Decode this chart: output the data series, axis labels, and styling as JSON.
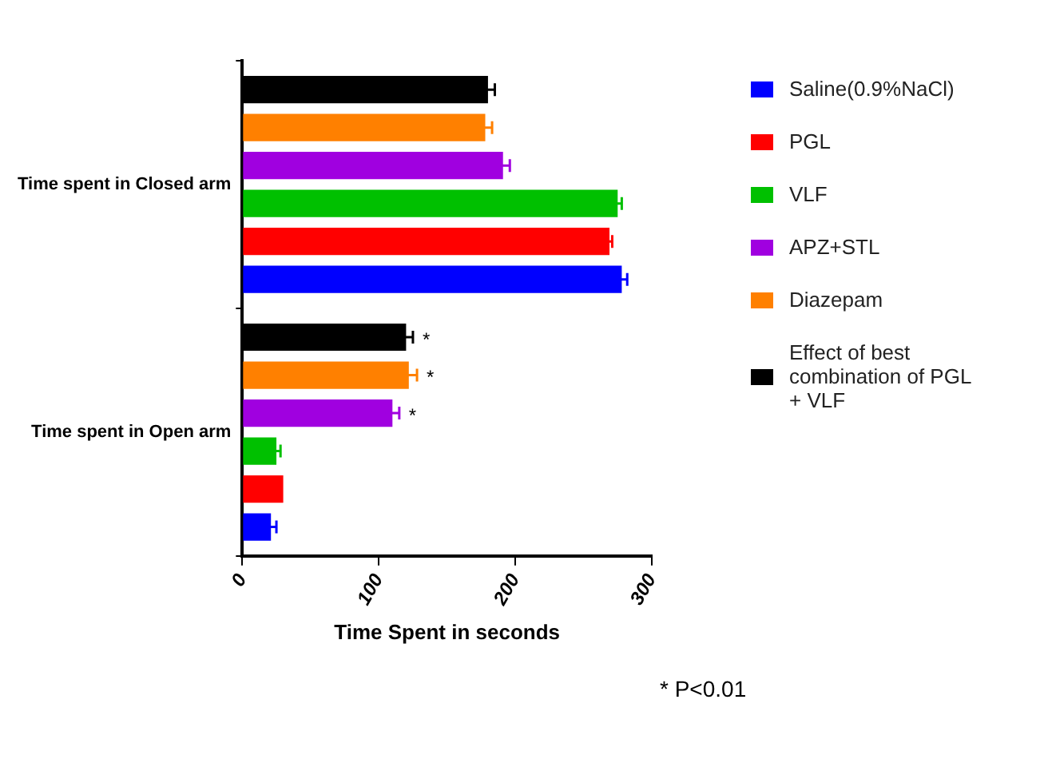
{
  "chart_data": {
    "type": "bar",
    "orientation": "horizontal",
    "xlabel": "Time Spent in seconds",
    "categories": [
      "Time spent in Closed arm",
      "Time spent in Open arm"
    ],
    "series": [
      {
        "name": "Saline(0.9%NaCl)",
        "color": "#0000ff",
        "values": [
          278,
          21
        ],
        "errors": [
          4,
          4
        ]
      },
      {
        "name": "PGL",
        "color": "#ff0000",
        "values": [
          269,
          30
        ],
        "errors": [
          2,
          null
        ]
      },
      {
        "name": "VLF",
        "color": "#00c000",
        "values": [
          275,
          25
        ],
        "errors": [
          3,
          3
        ]
      },
      {
        "name": "APZ+STL",
        "color": "#a000e0",
        "values": [
          191,
          110
        ],
        "errors": [
          5,
          5
        ],
        "value_labels": [
          null,
          "*"
        ]
      },
      {
        "name": "Diazepam",
        "color": "#ff8000",
        "values": [
          178,
          122
        ],
        "errors": [
          5,
          6
        ],
        "value_labels": [
          null,
          "*"
        ]
      },
      {
        "name": "Effect of best combination of PGL + VLF",
        "color": "#000000",
        "values": [
          180,
          120
        ],
        "errors": [
          5,
          5
        ],
        "value_labels": [
          null,
          "*"
        ]
      }
    ],
    "xlim": [
      0,
      300
    ],
    "xticks": [
      0,
      100,
      200,
      300
    ],
    "grid": false,
    "legend": "right",
    "annotations": [
      "* P<0.01"
    ]
  }
}
